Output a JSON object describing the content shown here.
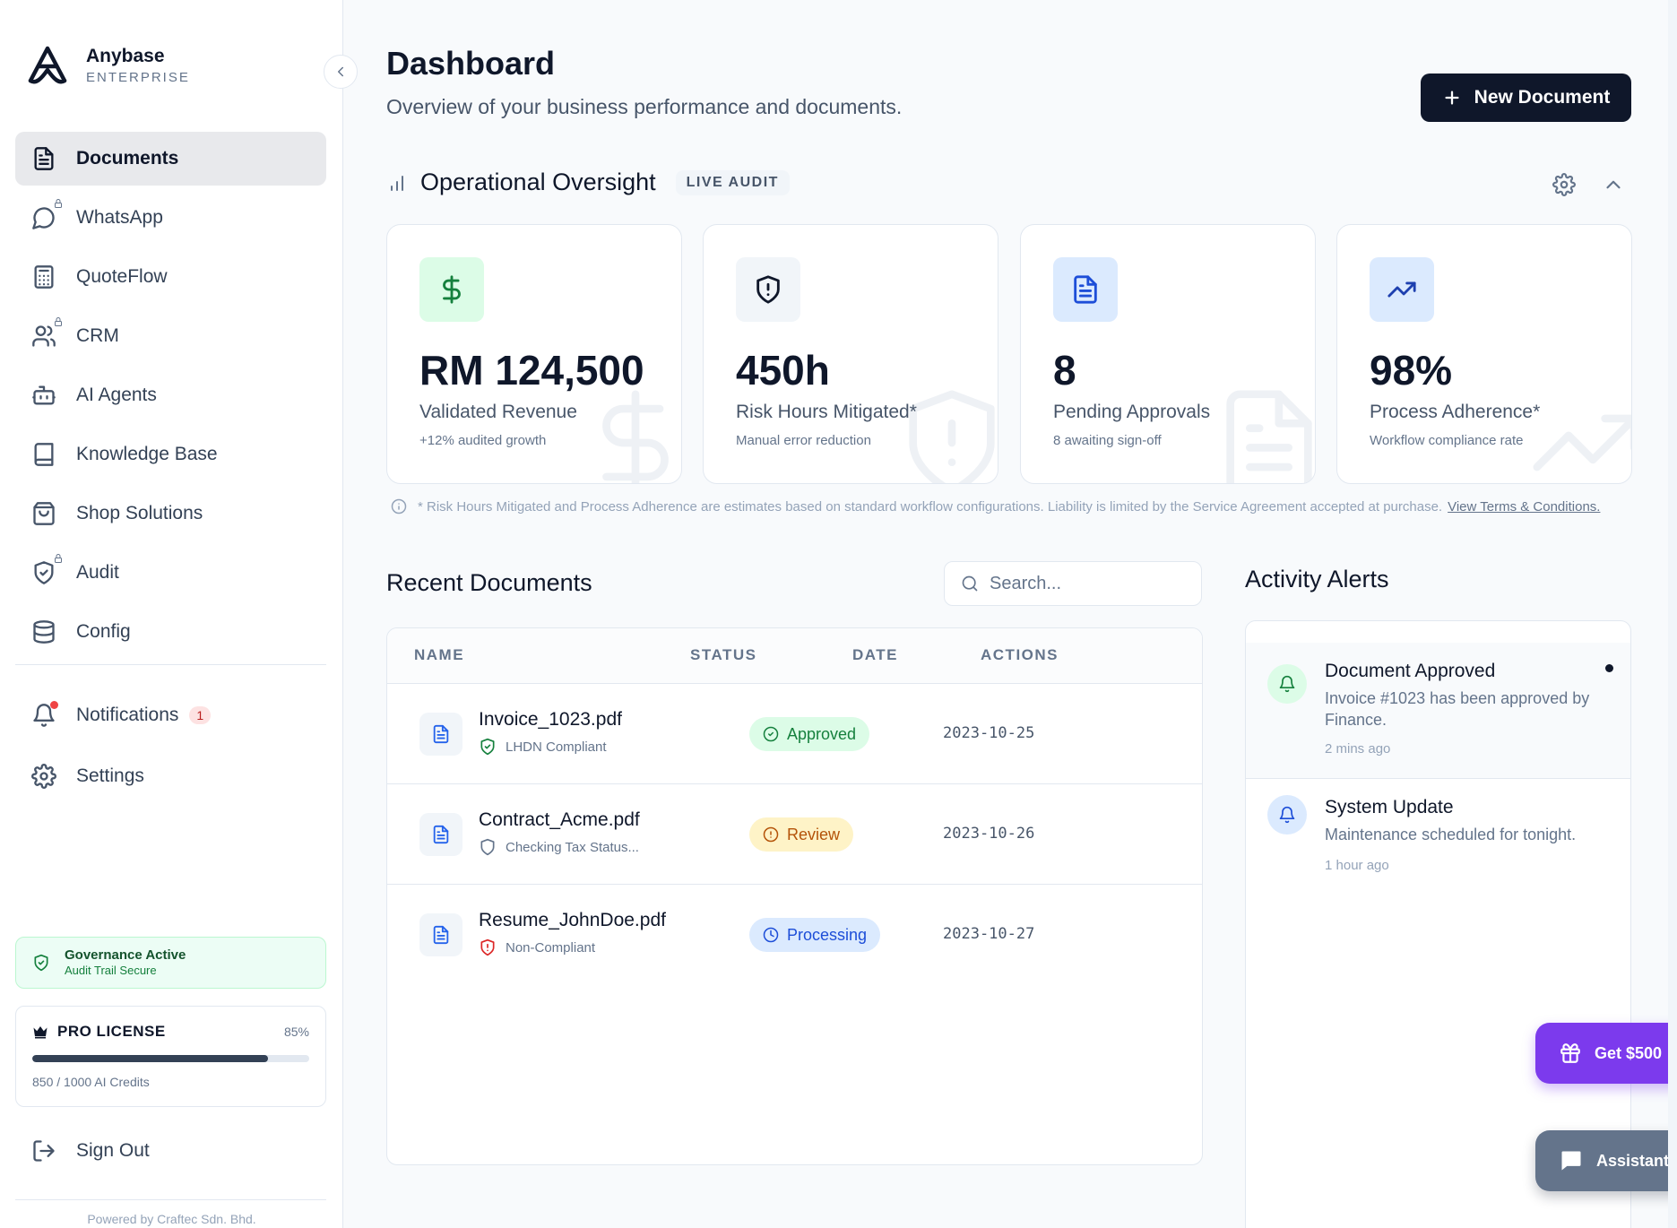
{
  "brand": {
    "name": "Anybase",
    "tagline": "ENTERPRISE"
  },
  "sidebar": {
    "items": [
      {
        "label": "Documents",
        "icon": "file-text-icon",
        "active": true,
        "locked": false
      },
      {
        "label": "WhatsApp",
        "icon": "chat-bubble-icon",
        "active": false,
        "locked": true
      },
      {
        "label": "QuoteFlow",
        "icon": "calculator-icon",
        "active": false,
        "locked": false
      },
      {
        "label": "CRM",
        "icon": "users-icon",
        "active": false,
        "locked": true
      },
      {
        "label": "AI Agents",
        "icon": "bot-icon",
        "active": false,
        "locked": false
      },
      {
        "label": "Knowledge Base",
        "icon": "book-icon",
        "active": false,
        "locked": false
      },
      {
        "label": "Shop Solutions",
        "icon": "shopping-bag-icon",
        "active": false,
        "locked": false
      },
      {
        "label": "Audit",
        "icon": "shield-check-icon",
        "active": false,
        "locked": true
      },
      {
        "label": "Config",
        "icon": "database-icon",
        "active": false,
        "locked": false
      }
    ],
    "notifications": {
      "label": "Notifications",
      "count": "1"
    },
    "settings": {
      "label": "Settings"
    },
    "governance": {
      "title": "Governance Active",
      "subtitle": "Audit Trail Secure"
    },
    "license": {
      "title": "PRO LICENSE",
      "percent_label": "85%",
      "used_fraction": 0.85,
      "credits": "850 / 1000 AI Credits"
    },
    "sign_out": "Sign Out",
    "powered_by": "Powered by Craftec Sdn. Bhd."
  },
  "header": {
    "title": "Dashboard",
    "subtitle": "Overview of your business performance and documents.",
    "new_document": "New Document"
  },
  "oversight": {
    "title": "Operational Oversight",
    "badge": "LIVE AUDIT",
    "cards": [
      {
        "value": "RM 124,500",
        "label": "Validated Revenue",
        "sub": "+12% audited growth",
        "icon": "dollar-icon",
        "color": "#15803d",
        "bg": "#dcfce7"
      },
      {
        "value": "450h",
        "label": "Risk Hours Mitigated*",
        "sub": "Manual error reduction",
        "icon": "shield-alert-icon",
        "color": "#0f172a",
        "bg": "#f1f5f9"
      },
      {
        "value": "8",
        "label": "Pending Approvals",
        "sub": "8 awaiting sign-off",
        "icon": "file-text-icon",
        "color": "#1d4ed8",
        "bg": "#dbeafe"
      },
      {
        "value": "98%",
        "label": "Process Adherence*",
        "sub": "Workflow compliance rate",
        "icon": "trending-up-icon",
        "color": "#1e40af",
        "bg": "#dbeafe"
      }
    ],
    "disclaimer": "* Risk Hours Mitigated and Process Adherence are estimates based on standard workflow configurations. Liability is limited by the Service Agreement accepted at purchase.",
    "terms_link": "View Terms & Conditions."
  },
  "recent": {
    "title": "Recent Documents",
    "search_placeholder": "Search...",
    "columns": [
      "NAME",
      "STATUS",
      "DATE",
      "ACTIONS"
    ],
    "rows": [
      {
        "name": "Invoice_1023.pdf",
        "compliance": "LHDN Compliant",
        "compliance_color": "#15803d",
        "status": "Approved",
        "date": "2023-10-25"
      },
      {
        "name": "Contract_Acme.pdf",
        "compliance": "Checking Tax Status...",
        "compliance_color": "#64748b",
        "status": "Review",
        "date": "2023-10-26"
      },
      {
        "name": "Resume_JohnDoe.pdf",
        "compliance": "Non-Compliant",
        "compliance_color": "#dc2626",
        "status": "Processing",
        "date": "2023-10-27"
      }
    ]
  },
  "alerts": {
    "title": "Activity Alerts",
    "items": [
      {
        "title": "Document Approved",
        "text": "Invoice #1023 has been approved by Finance.",
        "time": "2 mins ago",
        "unread": true
      },
      {
        "title": "System Update",
        "text": "Maintenance scheduled for tonight.",
        "time": "1 hour ago",
        "unread": false
      }
    ]
  },
  "floating": {
    "referral": "Get $500",
    "assistant": "Assistant"
  },
  "colors": {
    "primary": "#0f172a",
    "referral": "#7c3aed",
    "success": "#15803d",
    "warning": "#b45309",
    "info": "#1d4ed8"
  }
}
